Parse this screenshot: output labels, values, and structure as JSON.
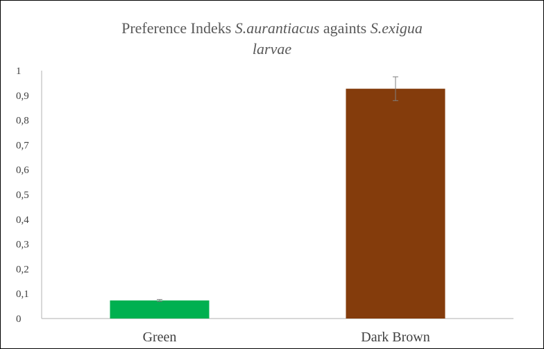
{
  "chart_data": {
    "type": "bar",
    "title": {
      "part1": "Preference  Indeks  ",
      "species1": "S.aurantiacus",
      "part2": " againts  ",
      "species2": "S.exigua",
      "line2": "larvae"
    },
    "categories": [
      "Green",
      "Dark Brown"
    ],
    "values": [
      0.073,
      0.927
    ],
    "errors": [
      0.004,
      0.048
    ],
    "colors": [
      "#00b050",
      "#843c0c"
    ],
    "ylim": [
      0,
      1
    ],
    "yticks": [
      "0",
      "0,1",
      "0,2",
      "0,3",
      "0,4",
      "0,5",
      "0,6",
      "0,7",
      "0,8",
      "0,9",
      "1"
    ],
    "grid": false,
    "legend": "none"
  }
}
